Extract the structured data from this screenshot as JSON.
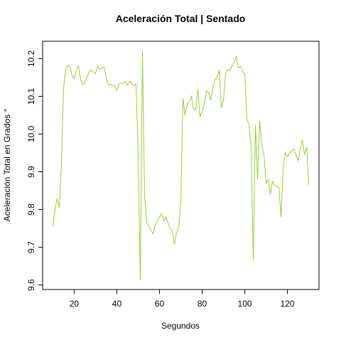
{
  "chart_data": {
    "type": "line",
    "title": "Aceleración Total | Sentado",
    "x_label": "Segundos",
    "y_label": "Aceleración Total en Grados °",
    "x": [
      10,
      11,
      12,
      13,
      14,
      15,
      16,
      17,
      18,
      19,
      20,
      21,
      22,
      23,
      24,
      25,
      26,
      27,
      28,
      29,
      30,
      31,
      32,
      33,
      34,
      35,
      36,
      37,
      38,
      39,
      40,
      41,
      42,
      43,
      44,
      45,
      46,
      47,
      48,
      49,
      50,
      51,
      52,
      53,
      54,
      55,
      56,
      57,
      58,
      59,
      60,
      61,
      62,
      63,
      64,
      65,
      66,
      67,
      68,
      69,
      70,
      71,
      72,
      73,
      74,
      75,
      76,
      77,
      78,
      79,
      80,
      81,
      82,
      83,
      84,
      85,
      86,
      87,
      88,
      89,
      90,
      91,
      92,
      93,
      94,
      95,
      96,
      97,
      98,
      99,
      100,
      101,
      102,
      103,
      104,
      105,
      106,
      107,
      108,
      109,
      110,
      111,
      112,
      113,
      114,
      115,
      116,
      117,
      118,
      119,
      120,
      121,
      122,
      123,
      124,
      125,
      126,
      127,
      128,
      129,
      130
    ],
    "series": [
      {
        "name": "Aceleración Total",
        "color": "#9acd32",
        "values": [
          9.755,
          9.8,
          9.83,
          9.805,
          9.92,
          10.12,
          10.17,
          10.183,
          10.178,
          10.155,
          10.147,
          10.168,
          10.18,
          10.145,
          10.13,
          10.135,
          10.15,
          10.165,
          10.17,
          10.165,
          10.16,
          10.18,
          10.17,
          10.175,
          10.178,
          10.15,
          10.13,
          10.132,
          10.128,
          10.128,
          10.115,
          10.132,
          10.135,
          10.133,
          10.14,
          10.13,
          10.14,
          10.135,
          10.128,
          10.133,
          9.95,
          9.612,
          10.222,
          9.84,
          9.765,
          9.755,
          9.745,
          9.735,
          9.76,
          9.77,
          9.78,
          9.79,
          9.77,
          9.78,
          9.765,
          9.75,
          9.745,
          9.708,
          9.74,
          9.75,
          9.82,
          10.095,
          10.05,
          10.08,
          10.085,
          10.1,
          10.065,
          10.065,
          10.12,
          10.045,
          10.06,
          10.08,
          10.115,
          10.11,
          10.09,
          10.12,
          10.145,
          10.15,
          10.17,
          10.07,
          10.09,
          10.16,
          10.17,
          10.168,
          10.18,
          10.19,
          10.205,
          10.175,
          10.18,
          10.165,
          10.16,
          10.04,
          10.025,
          9.96,
          9.665,
          10.025,
          9.88,
          10.035,
          9.97,
          9.945,
          9.87,
          9.88,
          9.84,
          9.875,
          9.865,
          9.86,
          9.86,
          9.78,
          9.91,
          9.95,
          9.94,
          9.95,
          9.955,
          9.96,
          9.945,
          9.93,
          9.96,
          9.985,
          9.945,
          9.965,
          9.865
        ]
      }
    ],
    "xlim": [
      5.2,
      134.8
    ],
    "ylim": [
      9.588,
      10.246
    ],
    "xticks": [
      20,
      40,
      60,
      80,
      100,
      120
    ],
    "yticks": [
      9.6,
      9.7,
      9.8,
      9.9,
      {
        "value": 10,
        "label": "10.0"
      },
      10.1,
      10.2
    ]
  }
}
